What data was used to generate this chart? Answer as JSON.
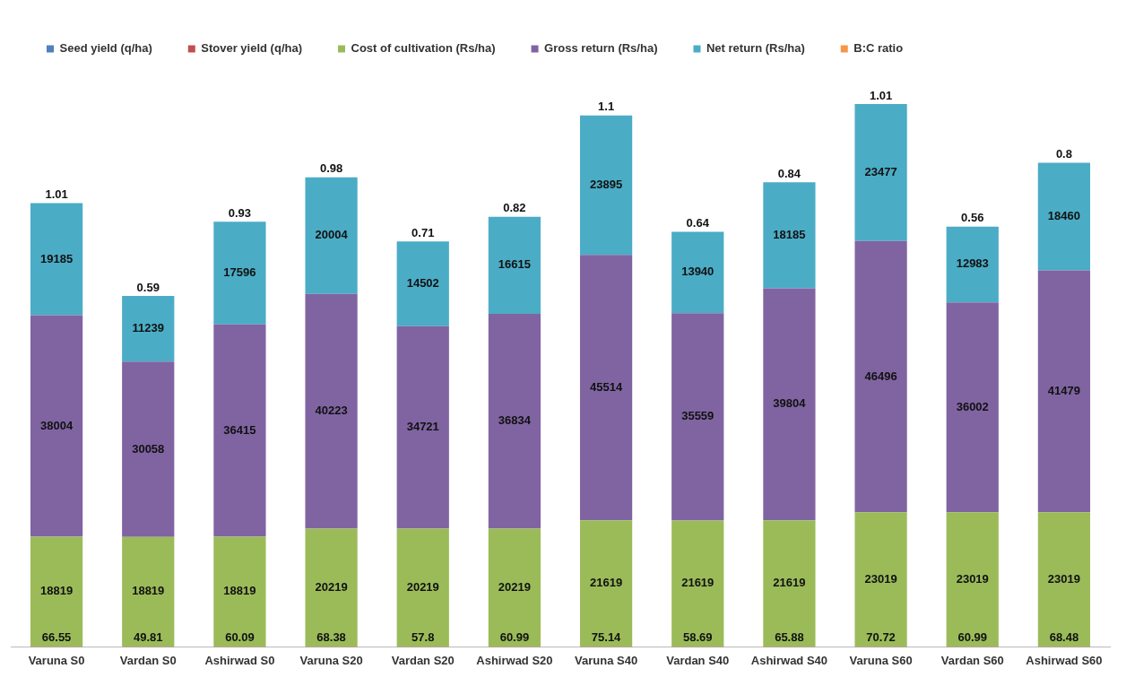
{
  "chart_data": {
    "type": "bar",
    "stacked": true,
    "data_labels": true,
    "legend": "top",
    "grid": false,
    "categories": [
      "Varuna S0",
      "Vardan S0",
      "Ashirwad S0",
      "Varuna S20",
      "Vardan S20",
      "Ashirwad S20",
      "Varuna S40",
      "Vardan S40",
      "Ashirwad S40",
      "Varuna S60",
      "Vardan S60",
      "Ashirwad S60"
    ],
    "series": [
      {
        "name": "Seed yield (q/ha)",
        "color": "#4f81bd",
        "values": [
          null,
          null,
          null,
          null,
          null,
          null,
          null,
          null,
          null,
          null,
          null,
          null
        ]
      },
      {
        "name": "Stover yield (q/ha)",
        "color": "#c0504d",
        "values": [
          66.55,
          49.81,
          60.09,
          68.38,
          57.8,
          60.99,
          75.14,
          58.69,
          65.88,
          70.72,
          60.99,
          68.48
        ]
      },
      {
        "name": "Cost of cultivation (Rs/ha)",
        "color": "#9bbb59",
        "values": [
          18819,
          18819,
          18819,
          20219,
          20219,
          20219,
          21619,
          21619,
          21619,
          23019,
          23019,
          23019
        ]
      },
      {
        "name": "Gross return (Rs/ha)",
        "color": "#8064a2",
        "values": [
          38004,
          30058,
          36415,
          40223,
          34721,
          36834,
          45514,
          35559,
          39804,
          46496,
          36002,
          41479
        ]
      },
      {
        "name": "Net return (Rs/ha)",
        "color": "#4bacc6",
        "values": [
          19185,
          11239,
          17596,
          20004,
          14502,
          16615,
          23895,
          13940,
          18185,
          23477,
          12983,
          18460
        ]
      },
      {
        "name": "B:C ratio",
        "color": "#f79646",
        "values": [
          1.01,
          0.59,
          0.93,
          0.98,
          0.71,
          0.82,
          1.1,
          0.64,
          0.84,
          1.01,
          0.56,
          0.8
        ]
      }
    ]
  }
}
